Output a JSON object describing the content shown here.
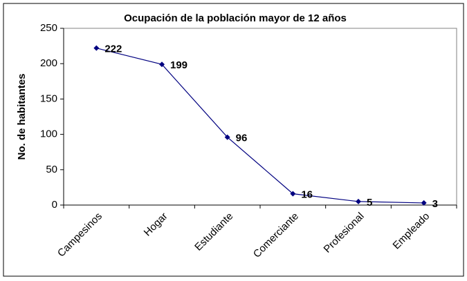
{
  "chart_data": {
    "type": "line",
    "title": "Ocupación de la población mayor de 12 años",
    "y_label": "No. de habitantes",
    "categories": [
      "Campesinos",
      "Hogar",
      "Estudiante",
      "Comerciante",
      "Profesional",
      "Empleado"
    ],
    "values": [
      222,
      199,
      96,
      16,
      5,
      3
    ],
    "color": "#000080",
    "ylim": [
      0,
      250
    ],
    "yticks": [
      0,
      50,
      100,
      150,
      200,
      250
    ],
    "grid": false
  }
}
